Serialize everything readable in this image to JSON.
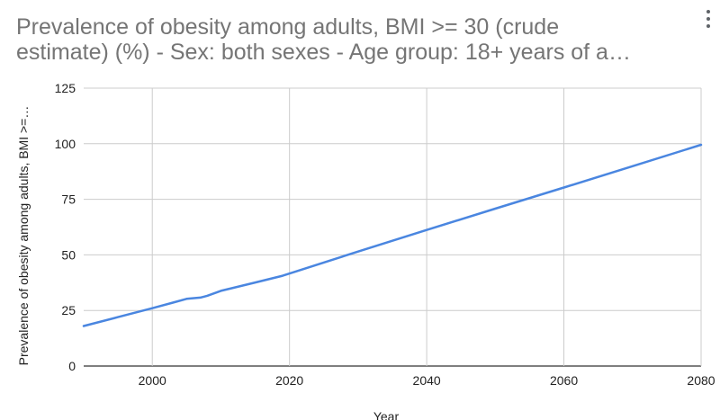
{
  "title_lines": [
    "Prevalence of obesity among adults, BMI >= 30 (crude",
    "estimate) (%) - Sex: both sexes - Age group: 18+  years of a…"
  ],
  "menu": {
    "icon": "more-vert-icon"
  },
  "colors": {
    "series": "#4a86e0",
    "grid": "#cccccc",
    "baseline": "#333333",
    "text": "#222222",
    "title": "#757575"
  },
  "chart_data": {
    "type": "line",
    "title": "Prevalence of obesity among adults, BMI >= 30 (crude estimate) (%) - Sex: both sexes - Age group: 18+  years of a…",
    "xlabel": "Year",
    "ylabel": "Prevalence of obesity among adults, BMI >=…",
    "xlim": [
      1990,
      2080
    ],
    "ylim": [
      0,
      125
    ],
    "x_ticks": [
      2000,
      2020,
      2040,
      2060,
      2080
    ],
    "y_ticks": [
      0,
      25,
      50,
      75,
      100,
      125
    ],
    "grid": true,
    "series": [
      {
        "name": "Prevalence of obesity among adults, BMI >= 30 (crude estimate) (%)",
        "x": [
          1990,
          1995,
          2000,
          2003,
          2005,
          2007,
          2008,
          2010,
          2015,
          2019,
          2021,
          2030,
          2040,
          2050,
          2060,
          2070,
          2080
        ],
        "y": [
          18,
          22,
          26,
          28.5,
          30.2,
          30.8,
          31.6,
          33.8,
          37.6,
          40.6,
          42.6,
          51.5,
          61.2,
          70.8,
          80.3,
          89.9,
          99.5
        ]
      }
    ]
  }
}
